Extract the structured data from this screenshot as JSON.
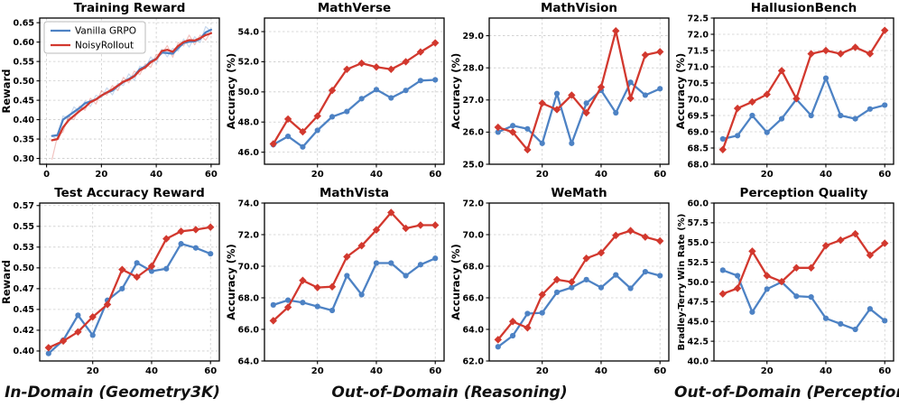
{
  "figure": {
    "colors": {
      "blue": "#4d82c4",
      "red": "#d2382e",
      "grid": "#cccccc",
      "spine": "#000000",
      "background": "#ffffff"
    },
    "legend": {
      "items": [
        {
          "label": "Vanilla GRPO",
          "color": "blue"
        },
        {
          "label": "NoisyRollout",
          "color": "red"
        }
      ]
    },
    "footer": {
      "labels": [
        "In-Domain (Geometry3K)",
        "Out-of-Domain (Reasoning)",
        "Out-of-Domain (Perception)"
      ]
    }
  },
  "chart_data": [
    {
      "type": "line",
      "title": "Training Reward",
      "ylabel": "Reward",
      "xlim": [
        -2.5,
        63
      ],
      "xticks": [
        0,
        20,
        40,
        60
      ],
      "xtick_labels": [
        "0",
        "20",
        "40",
        "60"
      ],
      "ylim": [
        0.285,
        0.662
      ],
      "yticks": [
        0.3,
        0.35,
        0.4,
        0.45,
        0.5,
        0.55,
        0.6,
        0.65
      ],
      "ytick_labels": [
        "0.30",
        "0.35",
        "0.40",
        "0.45",
        "0.50",
        "0.55",
        "0.60",
        "0.65"
      ],
      "legend": true,
      "x": [
        2,
        4,
        6,
        8,
        10,
        12,
        14,
        16,
        18,
        20,
        22,
        24,
        26,
        28,
        30,
        32,
        34,
        36,
        38,
        40,
        42,
        44,
        46,
        48,
        50,
        52,
        54,
        56,
        58,
        60
      ],
      "series": [
        {
          "name": "Vanilla GRPO (raw)",
          "color": "blue",
          "marker": "none",
          "raw": true,
          "values": [
            0.358,
            0.348,
            0.41,
            0.402,
            0.433,
            0.42,
            0.448,
            0.434,
            0.463,
            0.456,
            0.482,
            0.464,
            0.494,
            0.488,
            0.518,
            0.501,
            0.538,
            0.53,
            0.562,
            0.544,
            0.582,
            0.562,
            0.584,
            0.577,
            0.608,
            0.587,
            0.614,
            0.599,
            0.64,
            0.627
          ]
        },
        {
          "name": "NoisyRollout (raw)",
          "color": "red",
          "marker": "none",
          "raw": true,
          "values": [
            0.298,
            0.358,
            0.368,
            0.409,
            0.4,
            0.435,
            0.424,
            0.455,
            0.44,
            0.475,
            0.463,
            0.488,
            0.475,
            0.509,
            0.495,
            0.525,
            0.516,
            0.544,
            0.535,
            0.568,
            0.569,
            0.591,
            0.561,
            0.599,
            0.59,
            0.618,
            0.593,
            0.618,
            0.605,
            0.627
          ]
        },
        {
          "name": "Vanilla GRPO",
          "color": "blue",
          "marker": "none",
          "values": [
            0.358,
            0.36,
            0.4,
            0.41,
            0.42,
            0.43,
            0.442,
            0.447,
            0.452,
            0.462,
            0.47,
            0.475,
            0.487,
            0.497,
            0.505,
            0.513,
            0.53,
            0.537,
            0.55,
            0.557,
            0.573,
            0.572,
            0.57,
            0.585,
            0.598,
            0.601,
            0.602,
            0.608,
            0.625,
            0.632
          ]
        },
        {
          "name": "NoisyRollout",
          "color": "red",
          "marker": "none",
          "values": [
            0.347,
            0.35,
            0.38,
            0.398,
            0.41,
            0.422,
            0.432,
            0.445,
            0.452,
            0.462,
            0.47,
            0.478,
            0.488,
            0.498,
            0.503,
            0.512,
            0.527,
            0.535,
            0.548,
            0.556,
            0.577,
            0.58,
            0.575,
            0.59,
            0.6,
            0.605,
            0.604,
            0.61,
            0.618,
            0.623
          ]
        }
      ]
    },
    {
      "type": "line",
      "title": "MathVerse",
      "ylabel": "Accuracy (%)",
      "xlim": [
        2,
        63
      ],
      "xticks": [
        20,
        40,
        60
      ],
      "xtick_labels": [
        "20",
        "40",
        "60"
      ],
      "ylim": [
        45.2,
        54.9
      ],
      "yticks": [
        46,
        48,
        50,
        52,
        54
      ],
      "ytick_labels": [
        "46.0",
        "48.0",
        "50.0",
        "52.0",
        "54.0"
      ],
      "x": [
        5,
        10,
        15,
        20,
        25,
        30,
        35,
        40,
        45,
        50,
        55,
        60
      ],
      "series": [
        {
          "name": "Vanilla GRPO",
          "color": "blue",
          "marker": "circle",
          "values": [
            46.5,
            47.05,
            46.35,
            47.45,
            48.35,
            48.7,
            49.55,
            50.15,
            49.6,
            50.1,
            50.75,
            50.8
          ]
        },
        {
          "name": "NoisyRollout",
          "color": "red",
          "marker": "diamond",
          "values": [
            46.55,
            48.2,
            47.35,
            48.4,
            50.1,
            51.5,
            51.9,
            51.65,
            51.5,
            52.0,
            52.65,
            53.25
          ]
        }
      ]
    },
    {
      "type": "line",
      "title": "MathVision",
      "ylabel": "Accuracy (%)",
      "xlim": [
        2,
        63
      ],
      "xticks": [
        20,
        40,
        60
      ],
      "xtick_labels": [
        "20",
        "40",
        "60"
      ],
      "ylim": [
        25.0,
        29.55
      ],
      "yticks": [
        25.0,
        26.0,
        27.0,
        28.0,
        29.0
      ],
      "ytick_labels": [
        "25.0",
        "26.0",
        "27.0",
        "28.0",
        "29.0"
      ],
      "x": [
        5,
        10,
        15,
        20,
        25,
        30,
        35,
        40,
        45,
        50,
        55,
        60
      ],
      "series": [
        {
          "name": "Vanilla GRPO",
          "color": "blue",
          "marker": "circle",
          "values": [
            26.0,
            26.2,
            26.1,
            25.65,
            27.2,
            25.65,
            26.9,
            27.3,
            26.6,
            27.55,
            27.15,
            27.35
          ]
        },
        {
          "name": "NoisyRollout",
          "color": "red",
          "marker": "diamond",
          "values": [
            26.15,
            26.0,
            25.45,
            26.9,
            26.7,
            27.15,
            26.6,
            27.4,
            29.15,
            27.05,
            28.4,
            28.5
          ]
        }
      ]
    },
    {
      "type": "line",
      "title": "HallusionBench",
      "ylabel": "Accuracy (%)",
      "xlim": [
        2,
        63
      ],
      "xticks": [
        20,
        40,
        60
      ],
      "xtick_labels": [
        "20",
        "40",
        "60"
      ],
      "ylim": [
        68.0,
        72.5
      ],
      "yticks": [
        68.0,
        68.5,
        69.0,
        69.5,
        70.0,
        70.5,
        71.0,
        71.5,
        72.0,
        72.5
      ],
      "ytick_labels": [
        "68.0",
        "68.5",
        "69.0",
        "69.5",
        "70.0",
        "70.5",
        "71.0",
        "71.5",
        "72.0",
        "72.5"
      ],
      "x": [
        5,
        10,
        15,
        20,
        25,
        30,
        35,
        40,
        45,
        50,
        55,
        60
      ],
      "series": [
        {
          "name": "Vanilla GRPO",
          "color": "blue",
          "marker": "circle",
          "values": [
            68.78,
            68.88,
            69.5,
            68.98,
            69.4,
            70.0,
            69.5,
            70.65,
            69.5,
            69.4,
            69.7,
            69.82
          ]
        },
        {
          "name": "NoisyRollout",
          "color": "red",
          "marker": "diamond",
          "values": [
            68.45,
            69.72,
            69.92,
            70.15,
            70.88,
            70.02,
            71.4,
            71.5,
            71.4,
            71.6,
            71.4,
            72.12
          ]
        }
      ]
    },
    {
      "type": "line",
      "title": "Test Accuracy Reward",
      "ylabel": "Reward",
      "xlim": [
        2,
        63
      ],
      "xticks": [
        20,
        40,
        60
      ],
      "xtick_labels": [
        "20",
        "40",
        "60"
      ],
      "ylim": [
        0.388,
        0.578
      ],
      "yticks": [
        0.4,
        0.425,
        0.45,
        0.475,
        0.5,
        0.525,
        0.55,
        0.575
      ],
      "ytick_labels": [
        "0.40",
        "0.42",
        "0.45",
        "0.47",
        "0.50",
        "0.53",
        "0.55",
        "0.57"
      ],
      "x": [
        5,
        10,
        15,
        20,
        25,
        30,
        35,
        40,
        45,
        50,
        55,
        60
      ],
      "series": [
        {
          "name": "Vanilla GRPO",
          "color": "blue",
          "marker": "circle",
          "values": [
            0.397,
            0.413,
            0.443,
            0.419,
            0.461,
            0.475,
            0.506,
            0.496,
            0.499,
            0.529,
            0.524,
            0.517
          ]
        },
        {
          "name": "NoisyRollout",
          "color": "red",
          "marker": "diamond",
          "values": [
            0.404,
            0.412,
            0.423,
            0.441,
            0.456,
            0.498,
            0.489,
            0.502,
            0.535,
            0.544,
            0.546,
            0.549
          ]
        }
      ]
    },
    {
      "type": "line",
      "title": "MathVista",
      "ylabel": "Accuracy (%)",
      "xlim": [
        2,
        63
      ],
      "xticks": [
        20,
        40,
        60
      ],
      "xtick_labels": [
        "20",
        "40",
        "60"
      ],
      "ylim": [
        64.0,
        74.0
      ],
      "yticks": [
        64.0,
        66.0,
        68.0,
        70.0,
        72.0,
        74.0
      ],
      "ytick_labels": [
        "64.0",
        "66.0",
        "68.0",
        "70.0",
        "72.0",
        "74.0"
      ],
      "x": [
        5,
        10,
        15,
        20,
        25,
        30,
        35,
        40,
        45,
        50,
        55,
        60
      ],
      "series": [
        {
          "name": "Vanilla GRPO",
          "color": "blue",
          "marker": "circle",
          "values": [
            67.55,
            67.85,
            67.7,
            67.45,
            67.2,
            69.4,
            68.2,
            70.2,
            70.2,
            69.4,
            70.1,
            70.5
          ]
        },
        {
          "name": "NoisyRollout",
          "color": "red",
          "marker": "diamond",
          "values": [
            66.55,
            67.4,
            69.1,
            68.65,
            68.7,
            70.6,
            71.3,
            72.3,
            73.4,
            72.4,
            72.6,
            72.6
          ]
        }
      ]
    },
    {
      "type": "line",
      "title": "WeMath",
      "ylabel": "Accuracy (%)",
      "xlim": [
        2,
        63
      ],
      "xticks": [
        20,
        40,
        60
      ],
      "xtick_labels": [
        "20",
        "40",
        "60"
      ],
      "ylim": [
        62.0,
        72.0
      ],
      "yticks": [
        62.0,
        64.0,
        66.0,
        68.0,
        70.0,
        72.0
      ],
      "ytick_labels": [
        "62.0",
        "64.0",
        "66.0",
        "68.0",
        "70.0",
        "72.0"
      ],
      "x": [
        5,
        10,
        15,
        20,
        25,
        30,
        35,
        40,
        45,
        50,
        55,
        60
      ],
      "series": [
        {
          "name": "Vanilla GRPO",
          "color": "blue",
          "marker": "circle",
          "values": [
            62.9,
            63.6,
            65.0,
            65.05,
            66.35,
            66.65,
            67.15,
            66.65,
            67.45,
            66.6,
            67.65,
            67.4
          ]
        },
        {
          "name": "NoisyRollout",
          "color": "red",
          "marker": "diamond",
          "values": [
            63.35,
            64.5,
            64.1,
            66.2,
            67.15,
            67.0,
            68.5,
            68.85,
            69.95,
            70.25,
            69.85,
            69.6
          ]
        }
      ]
    },
    {
      "type": "line",
      "title": "Perception Quality",
      "ylabel": "Bradley-Terry Win Rate (%)",
      "xlim": [
        2,
        63
      ],
      "xticks": [
        20,
        40,
        60
      ],
      "xtick_labels": [
        "20",
        "40",
        "60"
      ],
      "ylim": [
        40.0,
        60.0
      ],
      "yticks": [
        40.0,
        42.5,
        45.0,
        47.5,
        50.0,
        52.5,
        55.0,
        57.5,
        60.0
      ],
      "ytick_labels": [
        "40.0",
        "42.5",
        "45.0",
        "47.5",
        "50.0",
        "52.5",
        "55.0",
        "57.5",
        "60.0"
      ],
      "x": [
        5,
        10,
        15,
        20,
        25,
        30,
        35,
        40,
        45,
        50,
        55,
        60
      ],
      "series": [
        {
          "name": "Vanilla GRPO",
          "color": "blue",
          "marker": "circle",
          "values": [
            51.5,
            50.8,
            46.2,
            49.1,
            50.0,
            48.2,
            48.1,
            45.4,
            44.7,
            44.0,
            46.6,
            45.1
          ]
        },
        {
          "name": "NoisyRollout",
          "color": "red",
          "marker": "diamond",
          "values": [
            48.5,
            49.2,
            53.9,
            50.8,
            50.05,
            51.8,
            51.8,
            54.6,
            55.3,
            56.1,
            53.4,
            54.9
          ]
        }
      ]
    }
  ]
}
